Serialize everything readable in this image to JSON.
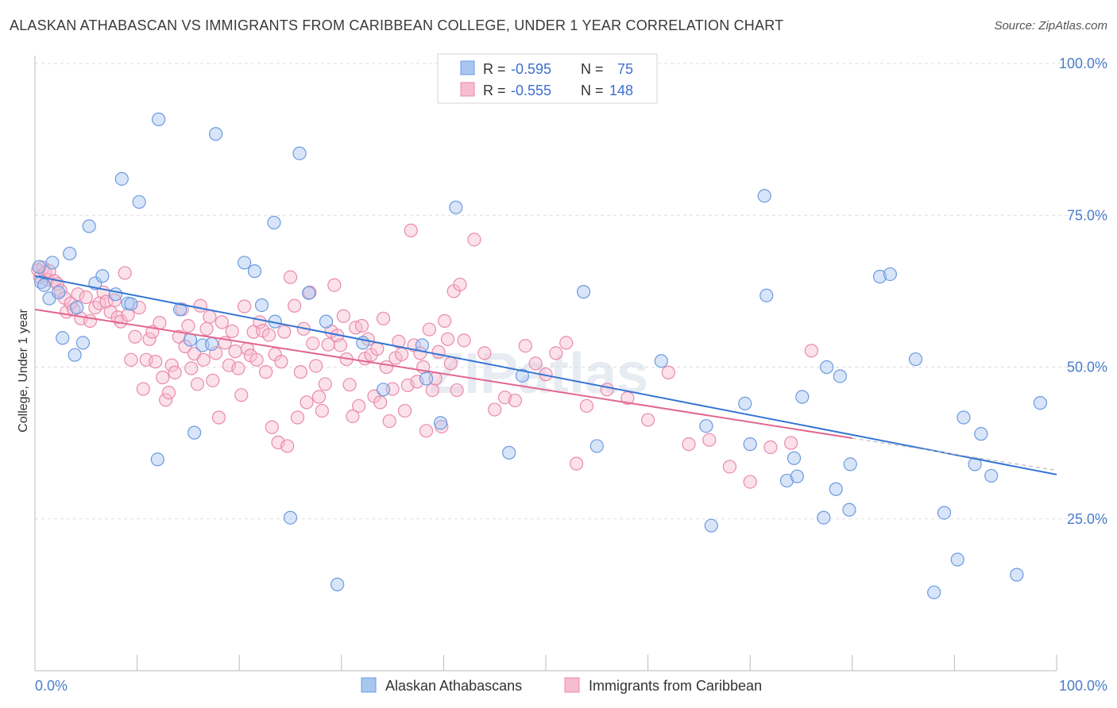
{
  "title": "ALASKAN ATHABASCAN VS IMMIGRANTS FROM CARIBBEAN COLLEGE, UNDER 1 YEAR CORRELATION CHART",
  "source": "Source: ZipAtlas.com",
  "watermark": "ZIPatlas",
  "legend": {
    "rows": [
      {
        "r_label": "R =",
        "r_value": "-0.595",
        "n_label": "N =",
        "n_value": "75"
      },
      {
        "r_label": "R =",
        "r_value": "-0.555",
        "n_label": "N =",
        "n_value": "148"
      }
    ]
  },
  "colors": {
    "blue_fill": "#a9c6ef",
    "blue_stroke": "#6b9ae0",
    "blue_line": "#3575d3",
    "pink_fill": "#f6bdd0",
    "pink_stroke": "#ea8aaa",
    "pink_line": "#e2668f",
    "grid": "#dddddd",
    "tick_text": "#4a7cc9"
  },
  "chart_data": {
    "type": "scatter",
    "title": "ALASKAN ATHABASCAN VS IMMIGRANTS FROM CARIBBEAN COLLEGE, UNDER 1 YEAR CORRELATION CHART",
    "xlabel": "",
    "ylabel": "College, Under 1 year",
    "xlim": [
      0,
      100
    ],
    "ylim": [
      0,
      100
    ],
    "x_tick_labels": [
      "0.0%",
      "100.0%"
    ],
    "y_ticks": [
      25,
      50,
      75,
      100
    ],
    "y_tick_labels": [
      "25.0%",
      "50.0%",
      "75.0%",
      "100.0%"
    ],
    "grid": true,
    "legend_position": "top-center",
    "series": [
      {
        "name": "Alaskan Athabascans",
        "r": -0.595,
        "n": 75,
        "trend": {
          "x": [
            0,
            100
          ],
          "y": [
            65.0,
            32.3
          ]
        },
        "points": [
          [
            0.4,
            66.5
          ],
          [
            0.6,
            64.0
          ],
          [
            0.9,
            63.5
          ],
          [
            1.4,
            61.3
          ],
          [
            1.7,
            67.2
          ],
          [
            2.3,
            62.3
          ],
          [
            2.7,
            54.8
          ],
          [
            3.4,
            68.7
          ],
          [
            3.9,
            52.0
          ],
          [
            4.1,
            59.8
          ],
          [
            4.7,
            54.0
          ],
          [
            5.3,
            73.2
          ],
          [
            5.9,
            63.8
          ],
          [
            6.6,
            65.0
          ],
          [
            7.9,
            62.0
          ],
          [
            8.5,
            81.0
          ],
          [
            9.1,
            60.5
          ],
          [
            9.4,
            60.4
          ],
          [
            10.2,
            77.2
          ],
          [
            12.0,
            34.8
          ],
          [
            12.1,
            90.8
          ],
          [
            14.2,
            59.5
          ],
          [
            15.2,
            54.5
          ],
          [
            15.6,
            39.2
          ],
          [
            16.4,
            53.6
          ],
          [
            17.3,
            53.8
          ],
          [
            17.7,
            88.4
          ],
          [
            20.5,
            67.2
          ],
          [
            21.5,
            65.8
          ],
          [
            22.2,
            60.2
          ],
          [
            23.4,
            73.8
          ],
          [
            23.5,
            57.5
          ],
          [
            25.0,
            25.2
          ],
          [
            25.9,
            85.2
          ],
          [
            26.8,
            62.2
          ],
          [
            28.5,
            57.5
          ],
          [
            29.6,
            14.2
          ],
          [
            32.1,
            54.0
          ],
          [
            34.1,
            46.3
          ],
          [
            37.9,
            53.6
          ],
          [
            38.3,
            48.1
          ],
          [
            39.7,
            40.8
          ],
          [
            41.2,
            76.3
          ],
          [
            46.4,
            35.9
          ],
          [
            47.7,
            48.6
          ],
          [
            53.7,
            62.4
          ],
          [
            55.0,
            37.0
          ],
          [
            61.3,
            51.0
          ],
          [
            65.7,
            40.3
          ],
          [
            66.2,
            23.9
          ],
          [
            69.5,
            44.0
          ],
          [
            70.0,
            37.3
          ],
          [
            71.4,
            78.2
          ],
          [
            71.6,
            61.8
          ],
          [
            73.6,
            31.3
          ],
          [
            74.3,
            35.0
          ],
          [
            74.6,
            32.0
          ],
          [
            75.1,
            45.1
          ],
          [
            77.2,
            25.2
          ],
          [
            77.5,
            50.0
          ],
          [
            78.4,
            29.9
          ],
          [
            78.8,
            48.5
          ],
          [
            79.7,
            26.5
          ],
          [
            79.8,
            34.0
          ],
          [
            82.7,
            64.9
          ],
          [
            83.7,
            65.3
          ],
          [
            86.2,
            51.3
          ],
          [
            88.0,
            12.9
          ],
          [
            89.0,
            26.0
          ],
          [
            90.3,
            18.3
          ],
          [
            90.9,
            41.7
          ],
          [
            92.0,
            34.0
          ],
          [
            92.6,
            39.0
          ],
          [
            93.6,
            32.1
          ],
          [
            96.1,
            15.8
          ],
          [
            98.4,
            44.1
          ]
        ]
      },
      {
        "name": "Immigrants from Caribbean",
        "r": -0.555,
        "n": 148,
        "trend": {
          "x": [
            0,
            80
          ],
          "y": [
            59.5,
            38.3
          ]
        },
        "points": [
          [
            0.3,
            66.0
          ],
          [
            0.5,
            64.8
          ],
          [
            0.8,
            66.4
          ],
          [
            1.0,
            65.6
          ],
          [
            1.2,
            64.4
          ],
          [
            1.4,
            65.8
          ],
          [
            1.9,
            64.2
          ],
          [
            2.2,
            63.7
          ],
          [
            2.5,
            62.6
          ],
          [
            2.9,
            61.4
          ],
          [
            3.1,
            59.1
          ],
          [
            3.5,
            60.5
          ],
          [
            3.8,
            59.5
          ],
          [
            4.2,
            62.0
          ],
          [
            4.5,
            58.0
          ],
          [
            5.0,
            61.5
          ],
          [
            5.4,
            57.6
          ],
          [
            5.9,
            59.8
          ],
          [
            6.3,
            60.5
          ],
          [
            6.7,
            62.3
          ],
          [
            7.0,
            60.8
          ],
          [
            7.4,
            59.1
          ],
          [
            7.8,
            61.0
          ],
          [
            8.1,
            58.2
          ],
          [
            8.4,
            57.5
          ],
          [
            8.8,
            65.5
          ],
          [
            9.1,
            58.6
          ],
          [
            9.4,
            51.2
          ],
          [
            9.8,
            55.0
          ],
          [
            10.2,
            59.8
          ],
          [
            10.6,
            46.4
          ],
          [
            10.9,
            51.2
          ],
          [
            11.2,
            54.6
          ],
          [
            11.5,
            55.8
          ],
          [
            11.8,
            50.9
          ],
          [
            12.2,
            57.3
          ],
          [
            12.5,
            48.3
          ],
          [
            12.8,
            44.6
          ],
          [
            13.1,
            45.8
          ],
          [
            13.4,
            50.3
          ],
          [
            13.7,
            49.1
          ],
          [
            14.1,
            55.0
          ],
          [
            14.4,
            59.5
          ],
          [
            14.7,
            53.4
          ],
          [
            15.0,
            56.8
          ],
          [
            15.3,
            49.8
          ],
          [
            15.6,
            52.2
          ],
          [
            15.9,
            47.2
          ],
          [
            16.2,
            60.1
          ],
          [
            16.5,
            51.2
          ],
          [
            16.8,
            56.3
          ],
          [
            17.1,
            58.3
          ],
          [
            17.4,
            47.8
          ],
          [
            17.7,
            52.3
          ],
          [
            18.0,
            41.7
          ],
          [
            18.3,
            57.4
          ],
          [
            18.6,
            54.0
          ],
          [
            19.0,
            50.3
          ],
          [
            19.3,
            55.9
          ],
          [
            19.6,
            52.6
          ],
          [
            19.9,
            49.8
          ],
          [
            20.2,
            45.4
          ],
          [
            20.5,
            60.0
          ],
          [
            20.8,
            53.0
          ],
          [
            21.1,
            51.9
          ],
          [
            21.4,
            55.8
          ],
          [
            21.7,
            51.2
          ],
          [
            22.0,
            57.4
          ],
          [
            22.3,
            56.0
          ],
          [
            22.6,
            49.2
          ],
          [
            22.9,
            55.3
          ],
          [
            23.2,
            40.1
          ],
          [
            23.5,
            52.1
          ],
          [
            23.8,
            37.6
          ],
          [
            24.1,
            50.9
          ],
          [
            24.4,
            55.8
          ],
          [
            24.7,
            37.0
          ],
          [
            25.0,
            64.8
          ],
          [
            25.4,
            60.1
          ],
          [
            25.7,
            41.7
          ],
          [
            26.0,
            49.2
          ],
          [
            26.3,
            56.3
          ],
          [
            26.6,
            44.2
          ],
          [
            26.9,
            62.3
          ],
          [
            27.2,
            53.9
          ],
          [
            27.5,
            50.2
          ],
          [
            27.8,
            45.1
          ],
          [
            28.1,
            42.8
          ],
          [
            28.4,
            47.2
          ],
          [
            28.7,
            53.7
          ],
          [
            29.0,
            55.9
          ],
          [
            29.3,
            63.5
          ],
          [
            29.6,
            55.2
          ],
          [
            29.9,
            53.6
          ],
          [
            30.2,
            58.4
          ],
          [
            30.5,
            51.3
          ],
          [
            30.8,
            47.1
          ],
          [
            31.1,
            41.9
          ],
          [
            31.4,
            56.5
          ],
          [
            31.7,
            43.6
          ],
          [
            32.0,
            56.8
          ],
          [
            32.3,
            51.4
          ],
          [
            32.6,
            54.6
          ],
          [
            32.9,
            52.0
          ],
          [
            33.2,
            45.2
          ],
          [
            33.5,
            53.0
          ],
          [
            33.8,
            44.2
          ],
          [
            34.1,
            58.0
          ],
          [
            34.4,
            50.0
          ],
          [
            34.7,
            41.1
          ],
          [
            35.0,
            46.4
          ],
          [
            35.3,
            51.5
          ],
          [
            35.6,
            54.2
          ],
          [
            35.9,
            52.1
          ],
          [
            36.2,
            42.8
          ],
          [
            36.5,
            47.0
          ],
          [
            36.8,
            72.5
          ],
          [
            37.1,
            53.6
          ],
          [
            37.4,
            47.6
          ],
          [
            37.7,
            52.3
          ],
          [
            38.0,
            50.0
          ],
          [
            38.3,
            39.5
          ],
          [
            38.6,
            56.2
          ],
          [
            38.9,
            46.2
          ],
          [
            39.2,
            48.1
          ],
          [
            39.5,
            52.5
          ],
          [
            39.8,
            40.2
          ],
          [
            40.1,
            57.6
          ],
          [
            40.4,
            54.6
          ],
          [
            40.7,
            50.6
          ],
          [
            41.0,
            62.5
          ],
          [
            41.3,
            46.2
          ],
          [
            41.6,
            63.6
          ],
          [
            42.0,
            54.4
          ],
          [
            43.0,
            71.0
          ],
          [
            44.0,
            52.3
          ],
          [
            45.0,
            43.0
          ],
          [
            46.0,
            45.0
          ],
          [
            47.0,
            44.5
          ],
          [
            48.0,
            53.5
          ],
          [
            49.0,
            50.6
          ],
          [
            50.0,
            48.8
          ],
          [
            51.0,
            52.3
          ],
          [
            52.0,
            54.0
          ],
          [
            53.0,
            34.1
          ],
          [
            54.0,
            43.6
          ],
          [
            56.0,
            46.3
          ],
          [
            58.0,
            44.9
          ],
          [
            60.0,
            41.3
          ],
          [
            62.0,
            49.1
          ],
          [
            64.0,
            37.3
          ],
          [
            66.0,
            38.0
          ],
          [
            68.0,
            33.6
          ],
          [
            70.0,
            31.1
          ],
          [
            72.0,
            36.8
          ],
          [
            74.0,
            37.5
          ],
          [
            76.0,
            52.7
          ]
        ]
      }
    ]
  }
}
